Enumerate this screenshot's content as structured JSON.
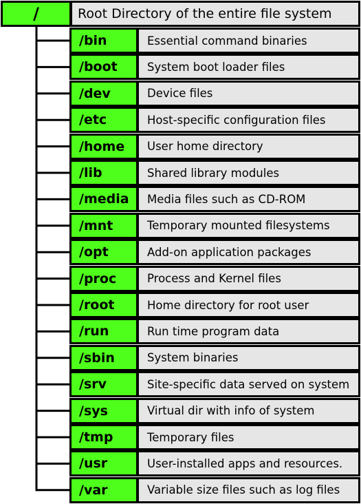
{
  "root": {
    "label": "/",
    "description": "Root Directory of the entire file system"
  },
  "directories": [
    {
      "name": "/bin",
      "description": "Essential command binaries"
    },
    {
      "name": "/boot",
      "description": "System boot loader files"
    },
    {
      "name": "/dev",
      "description": "Device  files"
    },
    {
      "name": "/etc",
      "description": "Host-specific configuration files"
    },
    {
      "name": "/home",
      "description": "User home directory"
    },
    {
      "name": "/lib",
      "description": "Shared library modules"
    },
    {
      "name": "/media",
      "description": "Media files such as CD-ROM"
    },
    {
      "name": "/mnt",
      "description": "Temporary mounted filesystems"
    },
    {
      "name": "/opt",
      "description": "Add-on application packages"
    },
    {
      "name": "/proc",
      "description": "Process and Kernel files"
    },
    {
      "name": "/root",
      "description": "Home directory for root user"
    },
    {
      "name": "/run",
      "description": "Run time program data"
    },
    {
      "name": "/sbin",
      "description": "System binaries"
    },
    {
      "name": "/srv",
      "description": "Site-specific data served on system"
    },
    {
      "name": "/sys",
      "description": "Virtual dir with info of system"
    },
    {
      "name": "/tmp",
      "description": "Temporary files"
    },
    {
      "name": "/usr",
      "description": "User-installed apps and resources."
    },
    {
      "name": "/var",
      "description": "Variable size files such as log files"
    }
  ],
  "colors": {
    "directory_fill": "#4dff1a",
    "description_fill": "#e6e6e6",
    "outline": "#000000"
  }
}
